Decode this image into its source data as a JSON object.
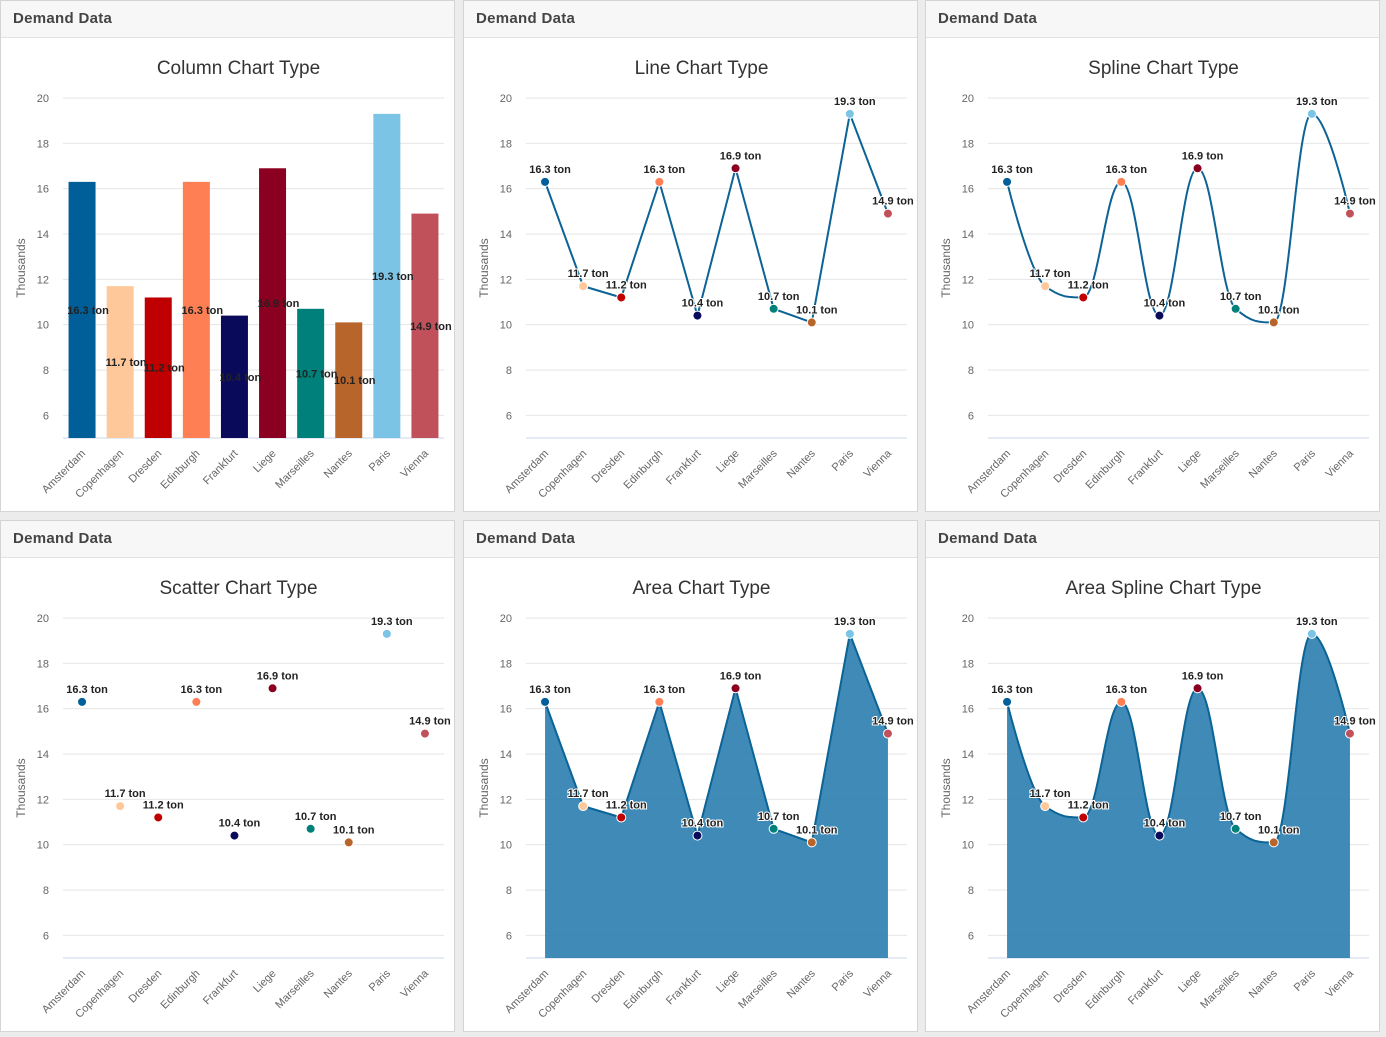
{
  "chart_data": [
    {
      "type": "column",
      "panel_title": "Demand Data",
      "title": "Column Chart Type",
      "y_label": "Thousands",
      "categories": [
        "Amsterdam",
        "Copenhagen",
        "Dresden",
        "Edinburgh",
        "Frankfurt",
        "Liege",
        "Marseilles",
        "Nantes",
        "Paris",
        "Vienna"
      ],
      "values": [
        16.3,
        11.7,
        11.2,
        16.3,
        10.4,
        16.9,
        10.7,
        10.1,
        19.3,
        14.9
      ],
      "value_labels": [
        "16.3 ton",
        "11.7 ton",
        "11.2 ton",
        "16.3 ton",
        "10.4 ton",
        "16.9 ton",
        "10.7 ton",
        "10.1 ton",
        "19.3 ton",
        "14.9 ton"
      ],
      "colors": [
        "#005f99",
        "#ffc89a",
        "#c00000",
        "#ff7f55",
        "#0a0a5a",
        "#8b0020",
        "#00807a",
        "#b8652c",
        "#7bc4e6",
        "#c0505a"
      ],
      "ylim": [
        5,
        20
      ],
      "yticks": [
        6,
        8,
        10,
        12,
        14,
        16,
        18,
        20
      ],
      "grid": true
    },
    {
      "type": "line",
      "panel_title": "Demand Data",
      "title": "Line Chart Type",
      "y_label": "Thousands",
      "categories": [
        "Amsterdam",
        "Copenhagen",
        "Dresden",
        "Edinburgh",
        "Frankfurt",
        "Liege",
        "Marseilles",
        "Nantes",
        "Paris",
        "Vienna"
      ],
      "values": [
        16.3,
        11.7,
        11.2,
        16.3,
        10.4,
        16.9,
        10.7,
        10.1,
        19.3,
        14.9
      ],
      "value_labels": [
        "16.3 ton",
        "11.7 ton",
        "11.2 ton",
        "16.3 ton",
        "10.4 ton",
        "16.9 ton",
        "10.7 ton",
        "10.1 ton",
        "19.3 ton",
        "14.9 ton"
      ],
      "colors": [
        "#005f99",
        "#ffc89a",
        "#c00000",
        "#ff7f55",
        "#0a0a5a",
        "#8b0020",
        "#00807a",
        "#b8652c",
        "#7bc4e6",
        "#c0505a"
      ],
      "line_color": "#0b6396",
      "ylim": [
        5,
        20
      ],
      "yticks": [
        6,
        8,
        10,
        12,
        14,
        16,
        18,
        20
      ],
      "grid": true
    },
    {
      "type": "spline",
      "panel_title": "Demand Data",
      "title": "Spline Chart Type",
      "y_label": "Thousands",
      "categories": [
        "Amsterdam",
        "Copenhagen",
        "Dresden",
        "Edinburgh",
        "Frankfurt",
        "Liege",
        "Marseilles",
        "Nantes",
        "Paris",
        "Vienna"
      ],
      "values": [
        16.3,
        11.7,
        11.2,
        16.3,
        10.4,
        16.9,
        10.7,
        10.1,
        19.3,
        14.9
      ],
      "value_labels": [
        "16.3 ton",
        "11.7 ton",
        "11.2 ton",
        "16.3 ton",
        "10.4 ton",
        "16.9 ton",
        "10.7 ton",
        "10.1 ton",
        "19.3 ton",
        "14.9 ton"
      ],
      "colors": [
        "#005f99",
        "#ffc89a",
        "#c00000",
        "#ff7f55",
        "#0a0a5a",
        "#8b0020",
        "#00807a",
        "#b8652c",
        "#7bc4e6",
        "#c0505a"
      ],
      "line_color": "#0b6396",
      "ylim": [
        5,
        20
      ],
      "yticks": [
        6,
        8,
        10,
        12,
        14,
        16,
        18,
        20
      ],
      "grid": true
    },
    {
      "type": "scatter",
      "panel_title": "Demand Data",
      "title": "Scatter Chart Type",
      "y_label": "Thousands",
      "categories": [
        "Amsterdam",
        "Copenhagen",
        "Dresden",
        "Edinburgh",
        "Frankfurt",
        "Liege",
        "Marseilles",
        "Nantes",
        "Paris",
        "Vienna"
      ],
      "values": [
        16.3,
        11.7,
        11.2,
        16.3,
        10.4,
        16.9,
        10.7,
        10.1,
        19.3,
        14.9
      ],
      "value_labels": [
        "16.3 ton",
        "11.7 ton",
        "11.2 ton",
        "16.3 ton",
        "10.4 ton",
        "16.9 ton",
        "10.7 ton",
        "10.1 ton",
        "19.3 ton",
        "14.9 ton"
      ],
      "colors": [
        "#005f99",
        "#ffc89a",
        "#c00000",
        "#ff7f55",
        "#0a0a5a",
        "#8b0020",
        "#00807a",
        "#b8652c",
        "#7bc4e6",
        "#c0505a"
      ],
      "ylim": [
        5,
        20
      ],
      "yticks": [
        6,
        8,
        10,
        12,
        14,
        16,
        18,
        20
      ],
      "grid": true
    },
    {
      "type": "area",
      "panel_title": "Demand Data",
      "title": "Area Chart Type",
      "y_label": "Thousands",
      "categories": [
        "Amsterdam",
        "Copenhagen",
        "Dresden",
        "Edinburgh",
        "Frankfurt",
        "Liege",
        "Marseilles",
        "Nantes",
        "Paris",
        "Vienna"
      ],
      "values": [
        16.3,
        11.7,
        11.2,
        16.3,
        10.4,
        16.9,
        10.7,
        10.1,
        19.3,
        14.9
      ],
      "value_labels": [
        "16.3 ton",
        "11.7 ton",
        "11.2 ton",
        "16.3 ton",
        "10.4 ton",
        "16.9 ton",
        "10.7 ton",
        "10.1 ton",
        "19.3 ton",
        "14.9 ton"
      ],
      "colors": [
        "#005f99",
        "#ffc89a",
        "#c00000",
        "#ff7f55",
        "#0a0a5a",
        "#8b0020",
        "#00807a",
        "#b8652c",
        "#7bc4e6",
        "#c0505a"
      ],
      "line_color": "#0b6396",
      "fill_color": "#2a7dae",
      "ylim": [
        5,
        20
      ],
      "yticks": [
        6,
        8,
        10,
        12,
        14,
        16,
        18,
        20
      ],
      "grid": true
    },
    {
      "type": "areaspline",
      "panel_title": "Demand Data",
      "title": "Area Spline Chart Type",
      "y_label": "Thousands",
      "categories": [
        "Amsterdam",
        "Copenhagen",
        "Dresden",
        "Edinburgh",
        "Frankfurt",
        "Liege",
        "Marseilles",
        "Nantes",
        "Paris",
        "Vienna"
      ],
      "values": [
        16.3,
        11.7,
        11.2,
        16.3,
        10.4,
        16.9,
        10.7,
        10.1,
        19.3,
        14.9
      ],
      "value_labels": [
        "16.3 ton",
        "11.7 ton",
        "11.2 ton",
        "16.3 ton",
        "10.4 ton",
        "16.9 ton",
        "10.7 ton",
        "10.1 ton",
        "19.3 ton",
        "14.9 ton"
      ],
      "colors": [
        "#005f99",
        "#ffc89a",
        "#c00000",
        "#ff7f55",
        "#0a0a5a",
        "#8b0020",
        "#00807a",
        "#b8652c",
        "#7bc4e6",
        "#c0505a"
      ],
      "line_color": "#0b6396",
      "fill_color": "#2a7dae",
      "ylim": [
        5,
        20
      ],
      "yticks": [
        6,
        8,
        10,
        12,
        14,
        16,
        18,
        20
      ],
      "grid": true
    }
  ]
}
